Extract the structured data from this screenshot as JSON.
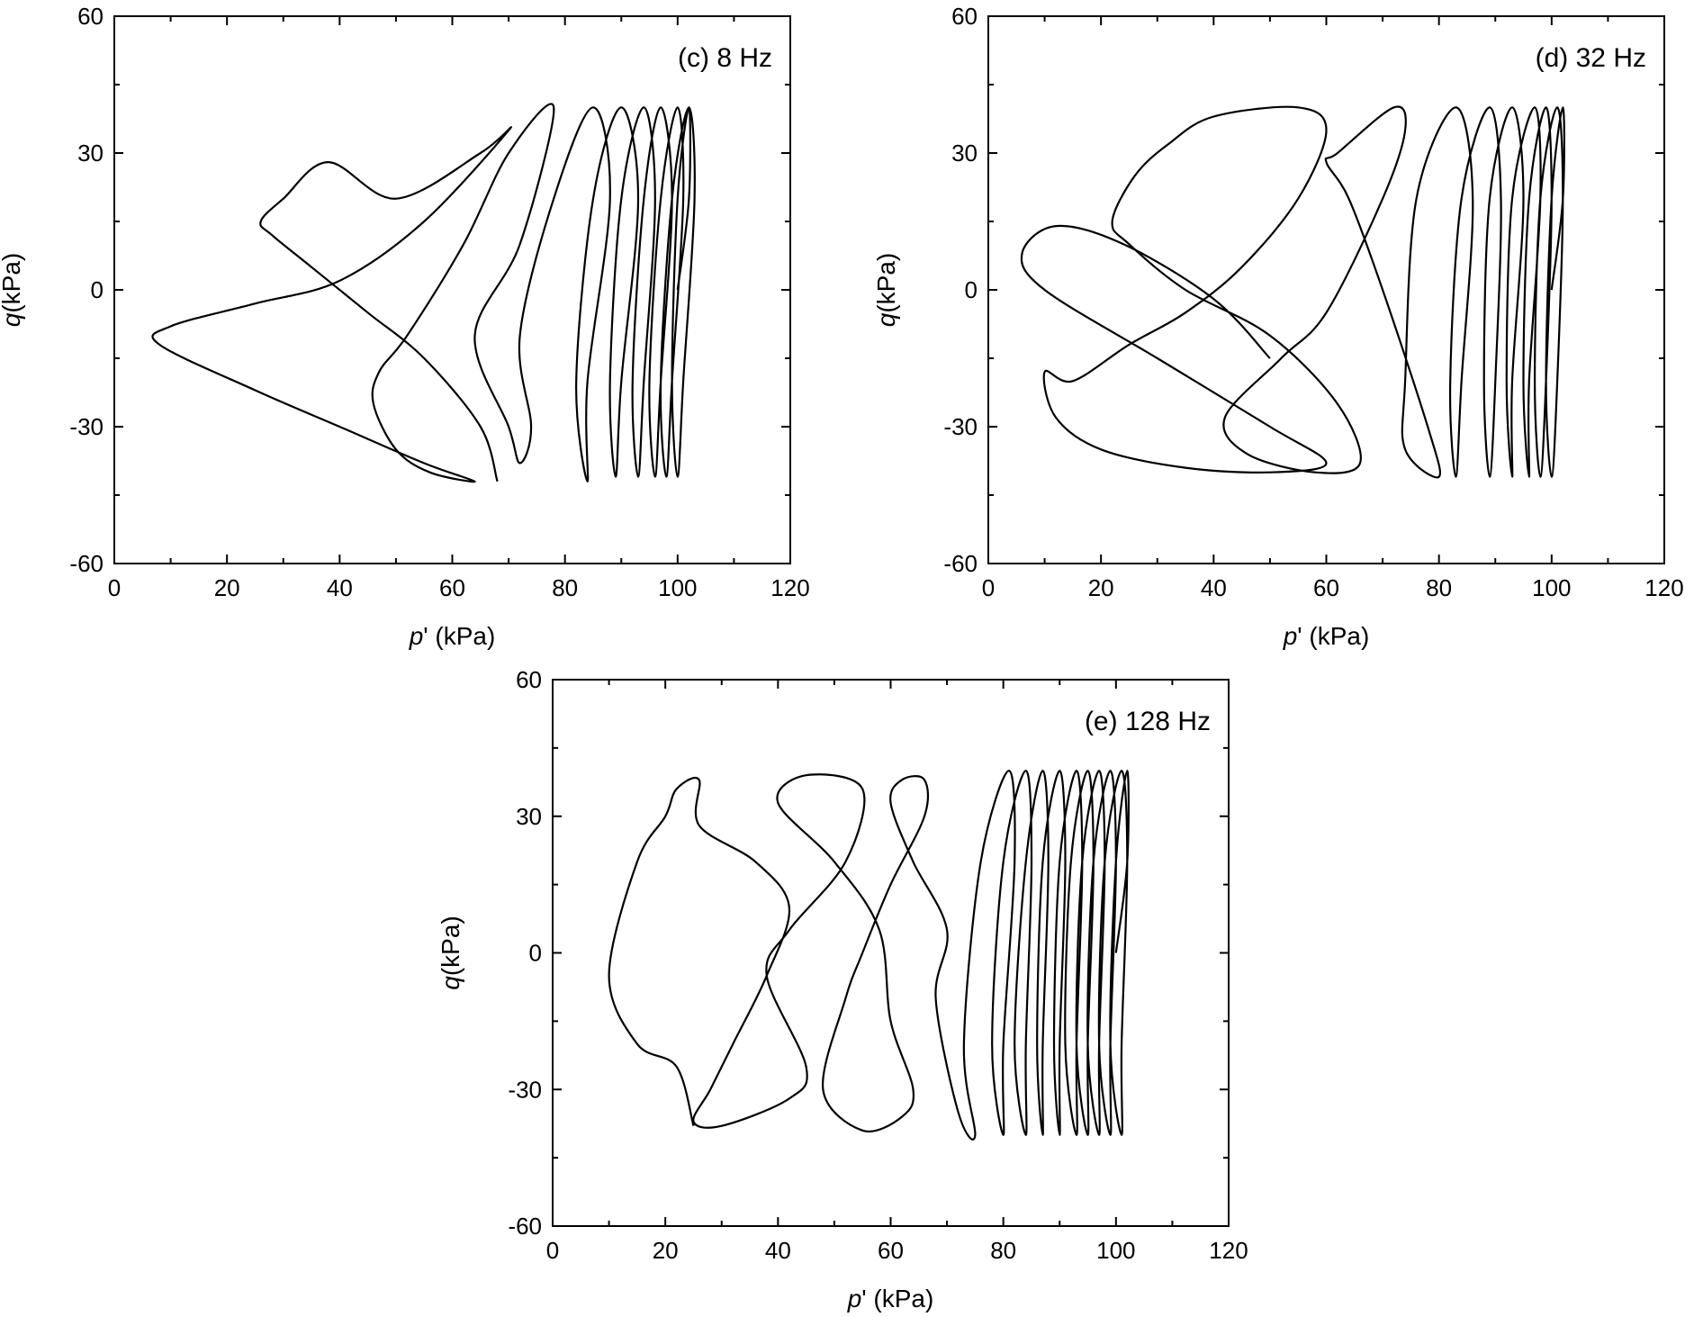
{
  "chart_data": [
    {
      "type": "line",
      "title": "(c) 8 Hz",
      "xlabel_var": "p",
      "xlabel_prime": "'",
      "xlabel_unit": " (kPa)",
      "ylabel_var": "q",
      "ylabel_unit": "(kPa)",
      "xlim": [
        0,
        120
      ],
      "ylim": [
        -60,
        60
      ],
      "xticks": [
        "0",
        "20",
        "40",
        "60",
        "80",
        "100",
        "120"
      ],
      "yticks": [
        "-60",
        "-30",
        "0",
        "30",
        "60"
      ],
      "colors": {
        "early": "#000000",
        "late": "#1010ee"
      },
      "series": [
        {
          "color": "black",
          "points": [
            [
              100,
              0
            ],
            [
              102,
              20
            ],
            [
              102,
              40
            ],
            [
              100,
              20
            ],
            [
              99,
              -20
            ],
            [
              100,
              -41
            ],
            [
              101,
              -20
            ],
            [
              103,
              20
            ],
            [
              102,
              40
            ],
            [
              99,
              20
            ],
            [
              97,
              -20
            ],
            [
              98,
              -41
            ],
            [
              99,
              -20
            ],
            [
              101,
              20
            ],
            [
              100,
              40
            ],
            [
              97,
              20
            ],
            [
              95,
              -20
            ],
            [
              96,
              -41
            ],
            [
              97,
              -20
            ],
            [
              99,
              20
            ],
            [
              97,
              40
            ],
            [
              94,
              20
            ],
            [
              92,
              -20
            ],
            [
              93,
              -41
            ],
            [
              94,
              -20
            ],
            [
              96,
              20
            ],
            [
              94,
              40
            ],
            [
              90,
              20
            ],
            [
              88,
              -20
            ],
            [
              89,
              -41
            ],
            [
              90,
              -20
            ],
            [
              93,
              20
            ],
            [
              90,
              40
            ],
            [
              85,
              20
            ],
            [
              82,
              -20
            ],
            [
              84,
              -42
            ],
            [
              84,
              -20
            ],
            [
              88,
              20
            ],
            [
              85,
              40
            ],
            [
              78,
              20
            ],
            [
              72,
              -10
            ],
            [
              74,
              -30
            ],
            [
              72,
              -38
            ],
            [
              70,
              -30
            ],
            [
              64,
              -10
            ],
            [
              72,
              10
            ],
            [
              78,
              40
            ],
            [
              70,
              30
            ],
            [
              62,
              10
            ],
            [
              52,
              -10
            ],
            [
              47,
              -18
            ],
            [
              46,
              -25
            ],
            [
              50,
              -35
            ],
            [
              56,
              -40
            ],
            [
              64,
              -42
            ],
            [
              55,
              -38
            ],
            [
              40,
              -30
            ],
            [
              25,
              -22
            ],
            [
              8,
              -12
            ],
            [
              10,
              -8
            ],
            [
              25,
              -3
            ],
            [
              40,
              2
            ],
            [
              55,
              15
            ],
            [
              70,
              35
            ],
            [
              65,
              30
            ],
            [
              50,
              20
            ],
            [
              38,
              28
            ],
            [
              30,
              20
            ],
            [
              26,
              15
            ],
            [
              28,
              12
            ],
            [
              35,
              5
            ],
            [
              45,
              -5
            ],
            [
              55,
              -15
            ],
            [
              65,
              -30
            ],
            [
              68,
              -42
            ]
          ]
        }
      ]
    },
    {
      "type": "line",
      "title": "(d) 32 Hz",
      "xlabel_var": "p",
      "xlabel_prime": "'",
      "xlabel_unit": " (kPa)",
      "ylabel_var": "q",
      "ylabel_unit": "(kPa)",
      "xlim": [
        0,
        120
      ],
      "ylim": [
        -60,
        60
      ],
      "xticks": [
        "0",
        "20",
        "40",
        "60",
        "80",
        "100",
        "120"
      ],
      "yticks": [
        "-60",
        "-30",
        "0",
        "30",
        "60"
      ],
      "colors": {
        "early": "#000000",
        "late": "#1010ee"
      },
      "series": [
        {
          "color": "black",
          "points": [
            [
              100,
              0
            ],
            [
              102,
              20
            ],
            [
              102,
              40
            ],
            [
              100,
              20
            ],
            [
              99,
              -20
            ],
            [
              100,
              -41
            ],
            [
              101,
              -20
            ],
            [
              102,
              20
            ],
            [
              101,
              40
            ],
            [
              98,
              20
            ],
            [
              97,
              -20
            ],
            [
              98,
              -41
            ],
            [
              99,
              -20
            ],
            [
              100,
              20
            ],
            [
              99,
              40
            ],
            [
              96,
              20
            ],
            [
              95,
              -20
            ],
            [
              96,
              -41
            ],
            [
              96,
              -20
            ],
            [
              98,
              20
            ],
            [
              97,
              40
            ],
            [
              93,
              20
            ],
            [
              92,
              -20
            ],
            [
              93,
              -41
            ],
            [
              93,
              -20
            ],
            [
              95,
              20
            ],
            [
              93,
              40
            ],
            [
              89,
              20
            ],
            [
              88,
              -20
            ],
            [
              89,
              -41
            ],
            [
              90,
              -20
            ],
            [
              91,
              20
            ],
            [
              89,
              40
            ],
            [
              84,
              20
            ],
            [
              82,
              -20
            ],
            [
              83,
              -41
            ],
            [
              84,
              -20
            ],
            [
              86,
              20
            ],
            [
              83,
              40
            ],
            [
              76,
              20
            ],
            [
              74,
              -20
            ],
            [
              74,
              -35
            ],
            [
              80,
              -41
            ],
            [
              78,
              -30
            ],
            [
              70,
              0
            ],
            [
              64,
              20
            ],
            [
              60,
              28
            ],
            [
              62,
              30
            ],
            [
              72,
              40
            ],
            [
              74,
              35
            ],
            [
              70,
              20
            ],
            [
              60,
              -5
            ],
            [
              52,
              -15
            ],
            [
              42,
              -28
            ],
            [
              46,
              -36
            ],
            [
              58,
              -40
            ],
            [
              66,
              -38
            ],
            [
              62,
              -25
            ],
            [
              50,
              -10
            ],
            [
              35,
              0
            ],
            [
              25,
              10
            ],
            [
              22,
              15
            ],
            [
              26,
              25
            ],
            [
              32,
              32
            ],
            [
              40,
              38
            ],
            [
              55,
              40
            ],
            [
              60,
              35
            ],
            [
              55,
              20
            ],
            [
              45,
              5
            ],
            [
              35,
              -5
            ],
            [
              25,
              -12
            ],
            [
              15,
              -20
            ],
            [
              10,
              -18
            ],
            [
              12,
              -28
            ],
            [
              20,
              -35
            ],
            [
              35,
              -39
            ],
            [
              50,
              -40
            ],
            [
              60,
              -38
            ],
            [
              50,
              -30
            ],
            [
              30,
              -15
            ],
            [
              10,
              0
            ],
            [
              6,
              8
            ],
            [
              12,
              14
            ],
            [
              24,
              10
            ],
            [
              40,
              -2
            ],
            [
              50,
              -15
            ]
          ]
        }
      ]
    },
    {
      "type": "line",
      "title": "(e) 128 Hz",
      "xlabel_var": "p",
      "xlabel_prime": "'",
      "xlabel_unit": " (kPa)",
      "ylabel_var": "q",
      "ylabel_unit": "(kPa)",
      "xlim": [
        0,
        120
      ],
      "ylim": [
        -60,
        60
      ],
      "xticks": [
        "0",
        "20",
        "40",
        "60",
        "80",
        "100",
        "120"
      ],
      "yticks": [
        "-60",
        "-30",
        "0",
        "30",
        "60"
      ],
      "colors": {
        "early": "#000000",
        "late": "#1010ee"
      },
      "series": [
        {
          "color": "black",
          "points": [
            [
              100,
              0
            ],
            [
              102,
              20
            ],
            [
              102,
              40
            ],
            [
              100,
              20
            ],
            [
              99,
              -20
            ],
            [
              101,
              -40
            ],
            [
              101,
              -20
            ],
            [
              102,
              20
            ],
            [
              101,
              40
            ],
            [
              98,
              20
            ],
            [
              97,
              -20
            ],
            [
              99,
              -40
            ],
            [
              99,
              -20
            ],
            [
              100,
              20
            ],
            [
              99,
              40
            ],
            [
              96,
              20
            ],
            [
              95,
              -20
            ],
            [
              97,
              -40
            ],
            [
              97,
              -20
            ],
            [
              98,
              20
            ],
            [
              97,
              40
            ],
            [
              94,
              20
            ],
            [
              93,
              -20
            ],
            [
              95,
              -40
            ],
            [
              95,
              -20
            ],
            [
              96,
              20
            ],
            [
              95,
              40
            ],
            [
              92,
              20
            ],
            [
              91,
              -20
            ],
            [
              93,
              -40
            ],
            [
              93,
              -20
            ],
            [
              94,
              20
            ],
            [
              93,
              40
            ],
            [
              90,
              20
            ],
            [
              89,
              -20
            ],
            [
              90,
              -40
            ],
            [
              90,
              -20
            ],
            [
              91,
              20
            ],
            [
              90,
              40
            ],
            [
              87,
              20
            ],
            [
              86,
              -20
            ],
            [
              87,
              -40
            ],
            [
              87,
              -20
            ],
            [
              88,
              20
            ],
            [
              87,
              40
            ],
            [
              84,
              20
            ],
            [
              82,
              -20
            ],
            [
              84,
              -40
            ],
            [
              84,
              -20
            ],
            [
              85,
              20
            ],
            [
              84,
              40
            ],
            [
              80,
              20
            ],
            [
              78,
              -20
            ],
            [
              80,
              -40
            ],
            [
              80,
              -20
            ],
            [
              82,
              20
            ],
            [
              81,
              40
            ],
            [
              76,
              20
            ],
            [
              73,
              -20
            ],
            [
              75,
              -40
            ],
            [
              72,
              -35
            ],
            [
              68,
              -10
            ],
            [
              70,
              5
            ],
            [
              64,
              20
            ],
            [
              60,
              33
            ],
            [
              62,
              38
            ],
            [
              66,
              38
            ],
            [
              66,
              30
            ],
            [
              60,
              15
            ],
            [
              55,
              0
            ],
            [
              52,
              -10
            ],
            [
              48,
              -30
            ],
            [
              55,
              -39
            ],
            [
              62,
              -36
            ],
            [
              64,
              -30
            ],
            [
              60,
              -15
            ],
            [
              58,
              5
            ],
            [
              50,
              20
            ],
            [
              40,
              33
            ],
            [
              45,
              39
            ],
            [
              55,
              36
            ],
            [
              52,
              20
            ],
            [
              42,
              5
            ],
            [
              38,
              -5
            ],
            [
              45,
              -25
            ],
            [
              42,
              -32
            ],
            [
              30,
              -38
            ],
            [
              25,
              -37
            ],
            [
              28,
              -30
            ],
            [
              32,
              -20
            ],
            [
              38,
              -5
            ],
            [
              42,
              10
            ],
            [
              36,
              20
            ],
            [
              26,
              28
            ],
            [
              26,
              38
            ],
            [
              22,
              36
            ],
            [
              20,
              30
            ],
            [
              15,
              20
            ],
            [
              10,
              -5
            ],
            [
              15,
              -20
            ],
            [
              22,
              -25
            ],
            [
              25,
              -38
            ]
          ]
        }
      ]
    }
  ]
}
